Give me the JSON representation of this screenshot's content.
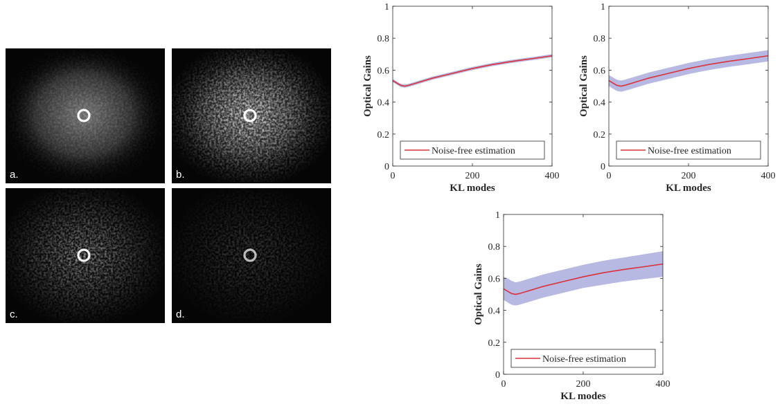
{
  "images": [
    {
      "label": "a."
    },
    {
      "label": "b."
    },
    {
      "label": "c."
    },
    {
      "label": "d."
    }
  ],
  "chart_data": [
    {
      "type": "line",
      "xlabel": "KL modes",
      "ylabel": "Optical Gains",
      "x": [
        0,
        10,
        20,
        30,
        40,
        60,
        80,
        100,
        150,
        200,
        250,
        300,
        350,
        400
      ],
      "series": [
        {
          "name": "Noise-free estimation",
          "color": "#d9303a",
          "values": [
            0.535,
            0.52,
            0.505,
            0.5,
            0.505,
            0.52,
            0.535,
            0.55,
            0.58,
            0.61,
            0.635,
            0.655,
            0.672,
            0.69
          ]
        }
      ],
      "band": {
        "color": "#b7b9e2",
        "lower": [
          0.525,
          0.51,
          0.495,
          0.49,
          0.495,
          0.51,
          0.525,
          0.54,
          0.57,
          0.6,
          0.625,
          0.645,
          0.662,
          0.68
        ],
        "upper": [
          0.545,
          0.53,
          0.515,
          0.51,
          0.515,
          0.53,
          0.545,
          0.56,
          0.59,
          0.62,
          0.645,
          0.665,
          0.682,
          0.7
        ]
      },
      "xlim": [
        0,
        400
      ],
      "ylim": [
        0,
        1
      ],
      "xticks": [
        0,
        200,
        400
      ],
      "yticks": [
        0,
        0.2,
        0.4,
        0.6,
        0.8,
        1
      ],
      "legend": "lower center"
    },
    {
      "type": "line",
      "xlabel": "KL modes",
      "ylabel": "Optical Gains",
      "x": [
        0,
        10,
        20,
        30,
        40,
        60,
        80,
        100,
        150,
        200,
        250,
        300,
        350,
        400
      ],
      "series": [
        {
          "name": "Noise-free estimation",
          "color": "#d9303a",
          "values": [
            0.535,
            0.52,
            0.505,
            0.5,
            0.505,
            0.52,
            0.535,
            0.55,
            0.58,
            0.61,
            0.635,
            0.655,
            0.672,
            0.69
          ]
        }
      ],
      "band": {
        "color": "#b7b9e2",
        "lower": [
          0.5,
          0.485,
          0.47,
          0.465,
          0.47,
          0.485,
          0.5,
          0.515,
          0.545,
          0.575,
          0.6,
          0.62,
          0.637,
          0.655
        ],
        "upper": [
          0.57,
          0.555,
          0.54,
          0.535,
          0.54,
          0.555,
          0.57,
          0.585,
          0.615,
          0.645,
          0.67,
          0.69,
          0.707,
          0.725
        ]
      },
      "xlim": [
        0,
        400
      ],
      "ylim": [
        0,
        1
      ],
      "xticks": [
        0,
        200,
        400
      ],
      "yticks": [
        0,
        0.2,
        0.4,
        0.6,
        0.8,
        1
      ],
      "legend": "lower center"
    },
    {
      "type": "line",
      "xlabel": "KL modes",
      "ylabel": "Optical Gains",
      "x": [
        0,
        10,
        20,
        30,
        40,
        60,
        80,
        100,
        150,
        200,
        250,
        300,
        350,
        400
      ],
      "series": [
        {
          "name": "Noise-free estimation",
          "color": "#d9303a",
          "values": [
            0.535,
            0.52,
            0.505,
            0.5,
            0.505,
            0.52,
            0.535,
            0.55,
            0.58,
            0.61,
            0.635,
            0.655,
            0.672,
            0.69
          ]
        }
      ],
      "band": {
        "color": "#b7b9e2",
        "lower": [
          0.465,
          0.45,
          0.435,
          0.43,
          0.435,
          0.45,
          0.465,
          0.48,
          0.51,
          0.54,
          0.56,
          0.58,
          0.595,
          0.61
        ],
        "upper": [
          0.61,
          0.6,
          0.585,
          0.575,
          0.58,
          0.595,
          0.61,
          0.625,
          0.655,
          0.685,
          0.71,
          0.73,
          0.75,
          0.77
        ]
      },
      "xlim": [
        0,
        400
      ],
      "ylim": [
        0,
        1
      ],
      "xticks": [
        0,
        200,
        400
      ],
      "yticks": [
        0,
        0.2,
        0.4,
        0.6,
        0.8,
        1
      ],
      "legend": "lower center"
    }
  ]
}
